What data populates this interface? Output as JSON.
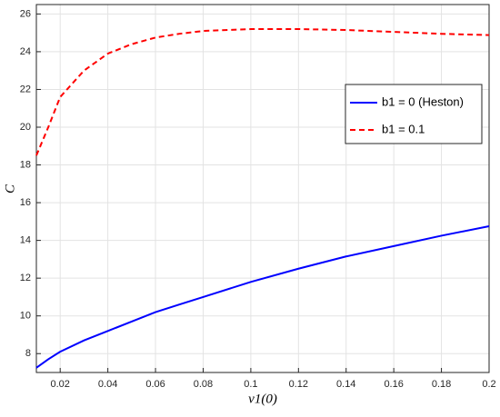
{
  "chart_data": {
    "type": "line",
    "x_label": "v1(0)",
    "y_label": "C",
    "x": [
      0.01,
      0.015,
      0.02,
      0.03,
      0.04,
      0.05,
      0.06,
      0.07,
      0.08,
      0.1,
      0.12,
      0.14,
      0.16,
      0.18,
      0.2
    ],
    "series": [
      {
        "name": "b1 = 0 (Heston)",
        "color": "#0000ff",
        "dash": "solid",
        "values": [
          7.25,
          7.7,
          8.1,
          8.7,
          9.2,
          9.7,
          10.2,
          10.6,
          11.0,
          11.8,
          12.5,
          13.15,
          13.7,
          14.25,
          14.75
        ]
      },
      {
        "name": "b1 = 0.1",
        "color": "#ff0000",
        "dash": "dashed",
        "values": [
          18.5,
          20.0,
          21.6,
          23.0,
          23.9,
          24.4,
          24.75,
          24.95,
          25.1,
          25.2,
          25.2,
          25.15,
          25.05,
          24.95,
          24.88
        ]
      }
    ],
    "xlim": [
      0.01,
      0.2
    ],
    "xticks": [
      0.02,
      0.04,
      0.06,
      0.08,
      0.1,
      0.12,
      0.14,
      0.16,
      0.18,
      0.2
    ],
    "ylim": [
      7,
      26.5
    ],
    "yticks": [
      8,
      10,
      12,
      14,
      16,
      18,
      20,
      22,
      24,
      26
    ],
    "grid": true,
    "legend": "right"
  }
}
